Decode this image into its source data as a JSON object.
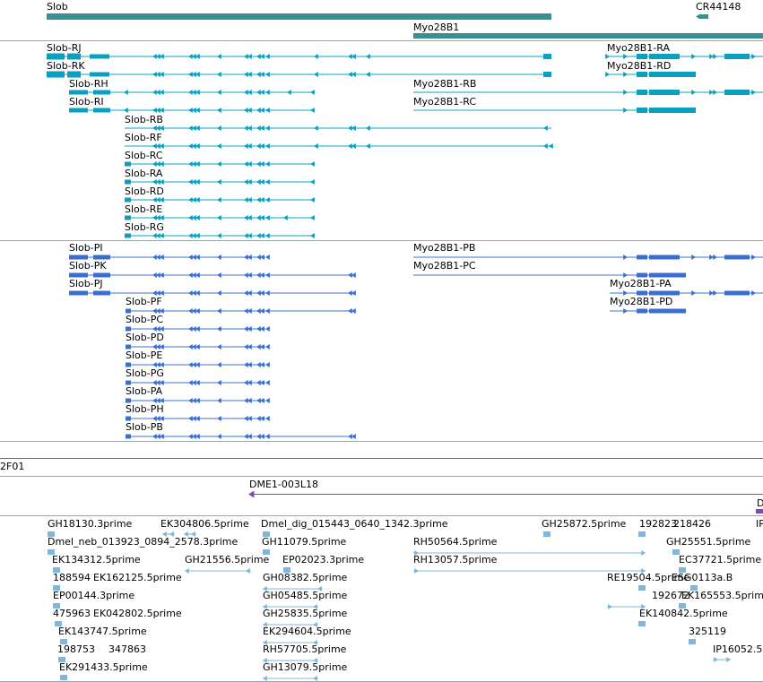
{
  "colors": {
    "gene": "#3a8f92",
    "transcript": "#0aa0c0",
    "protein": "#3b6fcf",
    "clone": "#7a4fa8",
    "est": "#7fb7dc",
    "separator": "#9aa4ad"
  },
  "tracks": {
    "genes": [
      {
        "label": "Slob"
      },
      {
        "label": "CR44148"
      },
      {
        "label": "Myo28B1"
      }
    ],
    "transcripts": [
      "Slob-RJ",
      "Slob-RK",
      "Slob-RH",
      "Slob-RI",
      "Slob-RB",
      "Slob-RF",
      "Slob-RC",
      "Slob-RA",
      "Slob-RD",
      "Slob-RE",
      "Slob-RG",
      "Myo28B1-RA",
      "Myo28B1-RD",
      "Myo28B1-RB",
      "Myo28B1-RC"
    ],
    "proteins": [
      "Slob-PI",
      "Slob-PK",
      "Slob-PJ",
      "Slob-PF",
      "Slob-PC",
      "Slob-PD",
      "Slob-PE",
      "Slob-PG",
      "Slob-PA",
      "Slob-PH",
      "Slob-PB",
      "Myo28B1-PB",
      "Myo28B1-PC",
      "Myo28B1-PA",
      "Myo28B1-PD"
    ],
    "clones": [
      "2F01",
      "DME1-003L18",
      "D"
    ],
    "ests": [
      "GH18130.3prime",
      "EK304806.5prime",
      "Dmel_dig_015443_0640_1342.3prime",
      "GH25872.5prime",
      "192823",
      "218426",
      "IP",
      "Dmel_neb_013923_0894_2578.3prime",
      "GH11079.5prime",
      "RH50564.5prime",
      "GH25551.5prime",
      "EK134312.5prime",
      "GH21556.5prime",
      "EP02023.3prime",
      "RH13057.5prime",
      "EC37721.5prime",
      "188594",
      "EK162125.5prime",
      "GH08382.5prime",
      "RE19504.5prime",
      "ESG0113a.B",
      "EP00144.3prime",
      "GH05485.5prime",
      "192672",
      "EK165553.5prim",
      "475963",
      "EK042802.5prime",
      "GH25835.5prime",
      "EK140842.5prime",
      "EK143747.5prime",
      "EK294604.5prime",
      "325119",
      "198753",
      "347863",
      "RH57705.5prime",
      "IP16052.5",
      "EK291433.5prime",
      "GH13079.5prime"
    ]
  }
}
